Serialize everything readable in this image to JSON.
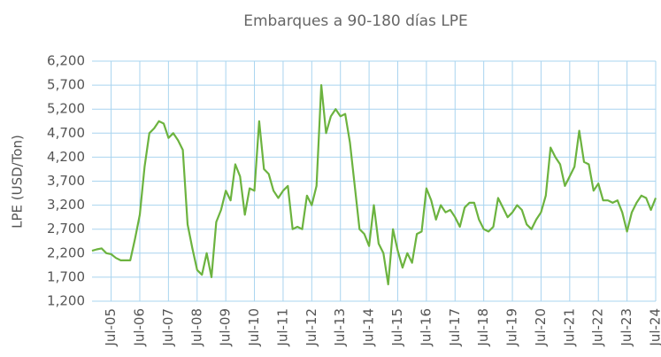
{
  "chart_data": {
    "type": "line",
    "title": "Embarques a 90-180 días LPE",
    "y_label": "LPE (USD/Ton)",
    "categories": [
      null,
      null,
      null,
      null,
      "Jul-05",
      null,
      null,
      null,
      null,
      null,
      "Jul-06",
      null,
      null,
      null,
      null,
      null,
      "Jul-07",
      null,
      null,
      null,
      null,
      null,
      "Jul-08",
      null,
      null,
      null,
      null,
      null,
      "Jul-09",
      null,
      null,
      null,
      null,
      null,
      "Jul-10",
      null,
      null,
      null,
      null,
      null,
      "Jul-11",
      null,
      null,
      null,
      null,
      null,
      "Jul-12",
      null,
      null,
      null,
      null,
      null,
      "Jul-13",
      null,
      null,
      null,
      null,
      null,
      "Jul-14",
      null,
      null,
      null,
      null,
      null,
      "Jul-15",
      null,
      null,
      null,
      null,
      null,
      "Jul-16",
      null,
      null,
      null,
      null,
      null,
      "Jul-17",
      null,
      null,
      null,
      null,
      null,
      "Jul-18",
      null,
      null,
      null,
      null,
      null,
      "Jul-19",
      null,
      null,
      null,
      null,
      null,
      "Jul-20",
      null,
      null,
      null,
      null,
      null,
      "Jul-21",
      null,
      null,
      null,
      null,
      null,
      "Jul-22",
      null,
      null,
      null,
      null,
      null,
      "Jul-23",
      null,
      null,
      null,
      null,
      null,
      "Jul-24"
    ],
    "series": [
      {
        "name": "LPE",
        "color": "#6cb33f",
        "values": [
          2250,
          2280,
          2300,
          2200,
          2180,
          2100,
          2050,
          2050,
          2050,
          2500,
          3000,
          4000,
          4700,
          4800,
          4950,
          4900,
          4600,
          4700,
          4550,
          4350,
          2800,
          2300,
          1850,
          1750,
          2200,
          1700,
          2850,
          3100,
          3500,
          3300,
          4050,
          3800,
          3000,
          3550,
          3500,
          4950,
          3950,
          3850,
          3500,
          3350,
          3500,
          3600,
          2700,
          2750,
          2700,
          3400,
          3200,
          3600,
          5700,
          4700,
          5050,
          5200,
          5050,
          5100,
          4500,
          3600,
          2700,
          2600,
          2350,
          3200,
          2400,
          2200,
          1550,
          2700,
          2250,
          1900,
          2200,
          2000,
          2600,
          2650,
          3550,
          3300,
          2900,
          3200,
          3050,
          3100,
          2950,
          2750,
          3150,
          3250,
          3250,
          2900,
          2700,
          2650,
          2750,
          3350,
          3150,
          2950,
          3050,
          3200,
          3100,
          2800,
          2700,
          2900,
          3050,
          3400,
          4400,
          4200,
          4050,
          3600,
          3800,
          4000,
          4750,
          4100,
          4050,
          3500,
          3650,
          3300,
          3300,
          3250,
          3300,
          3050,
          2650,
          3050,
          3250,
          3400,
          3350,
          3100,
          3350
        ]
      }
    ],
    "ylim": [
      1200,
      6200
    ],
    "yticks": [
      {
        "value": 1200,
        "label": "1,200"
      },
      {
        "value": 1700,
        "label": "1,700"
      },
      {
        "value": 2200,
        "label": "2,200"
      },
      {
        "value": 2700,
        "label": "2,700"
      },
      {
        "value": 3200,
        "label": "3,200"
      },
      {
        "value": 3700,
        "label": "3,700"
      },
      {
        "value": 4200,
        "label": "4,200"
      },
      {
        "value": 4700,
        "label": "4,700"
      },
      {
        "value": 5200,
        "label": "5,200"
      },
      {
        "value": 5700,
        "label": "5,700"
      },
      {
        "value": 6200,
        "label": "6,200"
      }
    ],
    "grid": true,
    "grid_color": "#a9d4ef"
  }
}
